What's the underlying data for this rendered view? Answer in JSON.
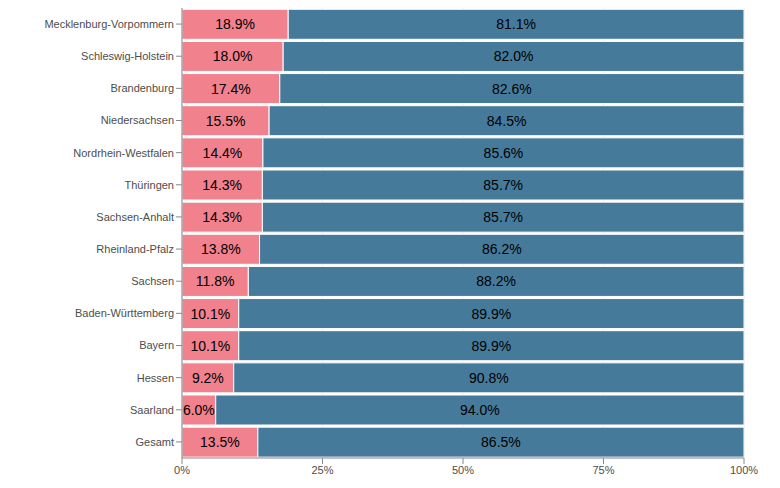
{
  "chart_data": {
    "type": "bar",
    "orientation": "horizontal",
    "stacked": true,
    "data_labels": true,
    "grid": true,
    "categories": [
      "Mecklenburg-Vorpommern",
      "Schleswig-Holstein",
      "Brandenburg",
      "Niedersachsen",
      "Nordrhein-Westfalen",
      "Thüringen",
      "Sachsen-Anhalt",
      "Rheinland-Pfalz",
      "Sachsen",
      "Baden-Württemberg",
      "Bayern",
      "Hessen",
      "Saarland",
      "Gesamt"
    ],
    "series": [
      {
        "color": "#f0818d",
        "values": [
          18.9,
          18.0,
          17.4,
          15.5,
          14.4,
          14.3,
          14.3,
          13.8,
          11.8,
          10.1,
          10.1,
          9.2,
          6.0,
          13.5
        ],
        "value_labels": [
          "18.9%",
          "18.0%",
          "17.4%",
          "15.5%",
          "14.4%",
          "14.3%",
          "14.3%",
          "13.8%",
          "11.8%",
          "10.1%",
          "10.1%",
          "9.2%",
          "6.0%",
          "13.5%"
        ]
      },
      {
        "color": "#467a9b",
        "values": [
          81.1,
          82.0,
          82.6,
          84.5,
          85.6,
          85.7,
          85.7,
          86.2,
          88.2,
          89.9,
          89.9,
          90.8,
          94.0,
          86.5
        ],
        "value_labels": [
          "81.1%",
          "82.0%",
          "82.6%",
          "84.5%",
          "85.6%",
          "85.7%",
          "85.7%",
          "86.2%",
          "88.2%",
          "89.9%",
          "89.9%",
          "90.8%",
          "94.0%",
          "86.5%"
        ]
      }
    ],
    "xlim": [
      0,
      100
    ],
    "xticks": [
      {
        "value": 0,
        "label": "0%"
      },
      {
        "value": 25,
        "label": "25%"
      },
      {
        "value": 50,
        "label": "50%"
      },
      {
        "value": 75,
        "label": "75%"
      },
      {
        "value": 100,
        "label": "100%"
      }
    ]
  }
}
